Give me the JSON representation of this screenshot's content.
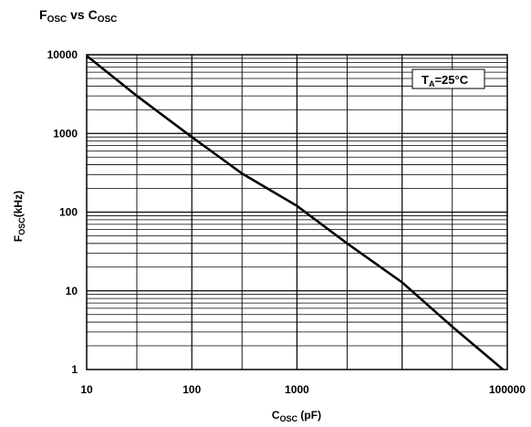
{
  "chart_data": {
    "type": "line",
    "title": {
      "main": "F",
      "main_sub": "OSC",
      "mid": " vs C",
      "mid_sub": "OSC"
    },
    "xlabel": {
      "main": "C",
      "sub": "OSC",
      "rest": " (pF)"
    },
    "ylabel": {
      "main": "F",
      "sub": "OSC",
      "rest": "(kHz)"
    },
    "x_scale": "log",
    "y_scale": "log",
    "xlim": [
      10,
      100000
    ],
    "ylim": [
      1,
      10000
    ],
    "x_ticks": [
      10,
      100,
      1000,
      10000,
      100000
    ],
    "y_ticks": [
      1,
      10,
      100,
      1000,
      10000
    ],
    "x_tick_labels": [
      "10",
      "100",
      "1000",
      "",
      "100000"
    ],
    "y_tick_labels": [
      "1",
      "10",
      "100",
      "1000",
      "10000"
    ],
    "grid": true,
    "annotation": {
      "main": "T",
      "sub": "A",
      "rest": "=25°C"
    },
    "series": [
      {
        "x": [
          10,
          30,
          100,
          300,
          1000,
          3000,
          10000,
          30000,
          100000
        ],
        "y": [
          9700,
          3000,
          900,
          310,
          120,
          40,
          12.8,
          3.5,
          0.9
        ]
      }
    ]
  }
}
